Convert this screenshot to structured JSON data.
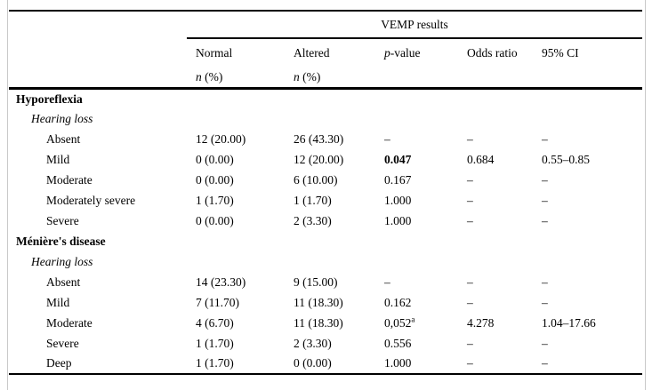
{
  "table": {
    "spanner": "VEMP results",
    "header": {
      "normal": "Normal",
      "altered": "Altered",
      "pvalue_italic": "p",
      "pvalue_rest": "-value",
      "odds": "Odds ratio",
      "ci": "95% CI",
      "n_italic": "n",
      "n_rest": " (%)"
    },
    "rows": [
      {
        "type": "section",
        "label": "Hyporeflexia"
      },
      {
        "type": "subsection",
        "label": "Hearing loss"
      },
      {
        "type": "data",
        "label": "Absent",
        "normal": "12 (20.00)",
        "altered": "26 (43.30)",
        "p": "–",
        "odds": "–",
        "ci": "–"
      },
      {
        "type": "data",
        "label": "Mild",
        "normal": "0 (0.00)",
        "altered": "12 (20.00)",
        "p": "0.047",
        "p_bold": true,
        "odds": "0.684",
        "ci": "0.55–0.85"
      },
      {
        "type": "data",
        "label": "Moderate",
        "normal": "0 (0.00)",
        "altered": "6 (10.00)",
        "p": "0.167",
        "odds": "–",
        "ci": "–"
      },
      {
        "type": "data",
        "label": "Moderately severe",
        "normal": "1 (1.70)",
        "altered": "1 (1.70)",
        "p": "1.000",
        "odds": "–",
        "ci": "–"
      },
      {
        "type": "data",
        "label": "Severe",
        "normal": "0 (0.00)",
        "altered": "2 (3.30)",
        "p": "1.000",
        "odds": "–",
        "ci": "–"
      },
      {
        "type": "section",
        "label": "Ménière's disease"
      },
      {
        "type": "subsection",
        "label": "Hearing loss"
      },
      {
        "type": "data",
        "label": "Absent",
        "normal": "14 (23.30)",
        "altered": "9 (15.00)",
        "p": "–",
        "odds": "–",
        "ci": "–"
      },
      {
        "type": "data",
        "label": "Mild",
        "normal": "7 (11.70)",
        "altered": "11 (18.30)",
        "p": "0.162",
        "odds": "–",
        "ci": "–"
      },
      {
        "type": "data",
        "label": "Moderate",
        "normal": "4 (6.70)",
        "altered": "11 (18.30)",
        "p": "0,052",
        "p_sup": "a",
        "odds": "4.278",
        "ci": "1.04–17.66"
      },
      {
        "type": "data",
        "label": "Severe",
        "normal": "1 (1.70)",
        "altered": "2 (3.30)",
        "p": "0.556",
        "odds": "–",
        "ci": "–"
      },
      {
        "type": "data",
        "label": "Deep",
        "normal": "1 (1.70)",
        "altered": "0 (0.00)",
        "p": "1.000",
        "odds": "–",
        "ci": "–"
      }
    ]
  }
}
